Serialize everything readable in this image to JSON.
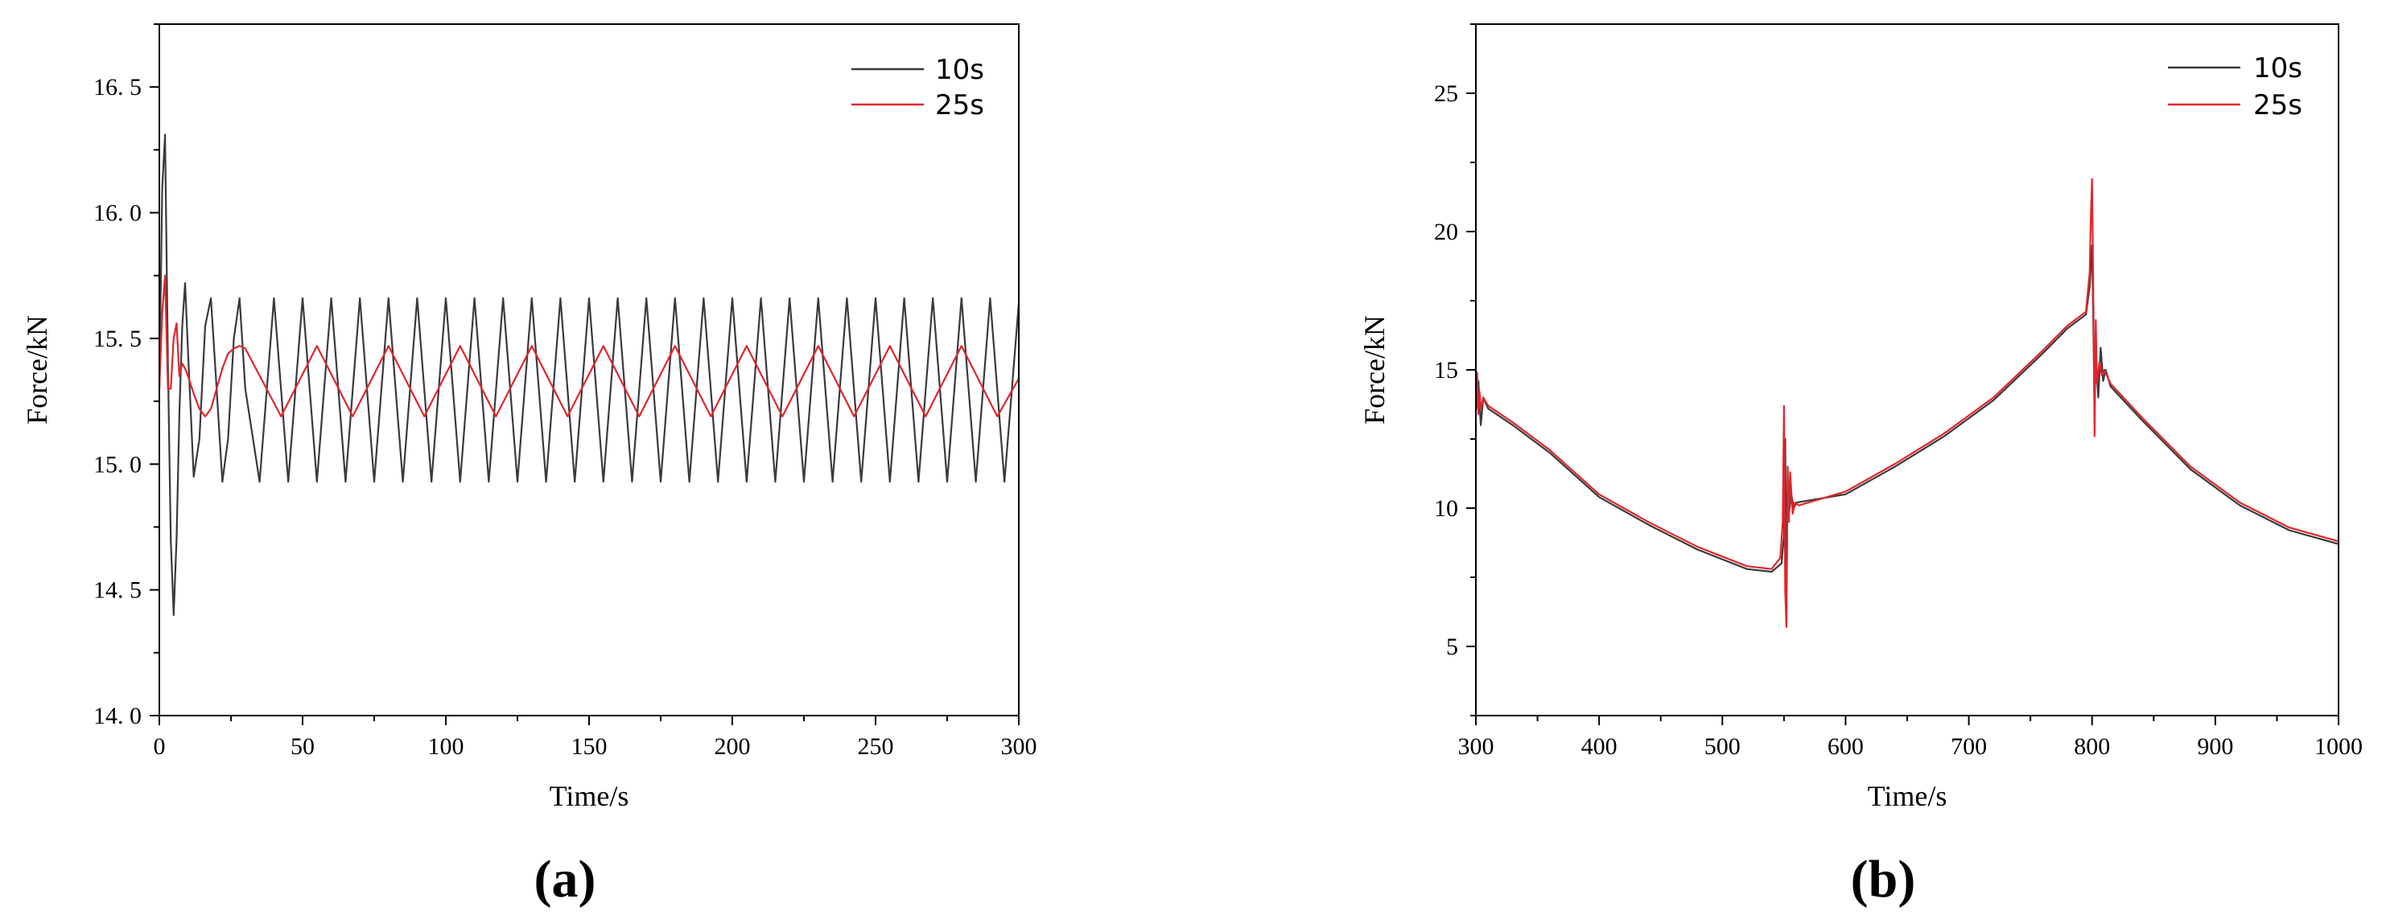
{
  "figure": {
    "panel_labels": [
      "(a)",
      "(b)"
    ],
    "colors": {
      "axis": "#000000",
      "series_10s": "#3a3a3a",
      "series_25s": "#e0262a"
    }
  },
  "chart_data": [
    {
      "type": "line",
      "panel": "(a)",
      "xlabel": "Time/s",
      "ylabel": "Force/kN",
      "xlim": [
        0,
        300
      ],
      "ylim": [
        14.0,
        16.75
      ],
      "xticks": [
        0,
        50,
        100,
        150,
        200,
        250,
        300
      ],
      "xtick_labels": [
        "0",
        "50",
        "100",
        "150",
        "200",
        "250",
        "300"
      ],
      "yticks": [
        14.0,
        14.5,
        15.0,
        15.5,
        16.0,
        16.5
      ],
      "ytick_labels": [
        "14. 0",
        "14. 5",
        "15. 0",
        "15. 5",
        "16. 0",
        "16. 5"
      ],
      "grid": false,
      "legend_position": "top-right",
      "series": [
        {
          "name": "10s",
          "color": "#3a3a3a",
          "x": [
            0,
            1,
            2,
            3,
            4,
            5,
            6,
            7,
            8,
            9,
            10,
            12,
            14,
            16,
            18,
            20,
            22,
            24,
            26,
            28,
            30,
            35,
            40,
            45,
            50,
            55,
            60,
            65,
            70,
            75,
            80,
            85,
            90,
            95,
            100,
            105,
            110,
            115,
            120,
            125,
            130,
            135,
            140,
            145,
            150,
            155,
            160,
            165,
            170,
            175,
            180,
            185,
            190,
            195,
            200,
            205,
            210,
            215,
            220,
            225,
            230,
            235,
            240,
            245,
            250,
            255,
            260,
            265,
            270,
            275,
            280,
            285,
            290,
            295,
            300
          ],
          "values": [
            15.3,
            16.1,
            16.31,
            15.4,
            14.7,
            14.4,
            14.7,
            15.2,
            15.55,
            15.72,
            15.45,
            14.95,
            15.1,
            15.55,
            15.66,
            15.3,
            14.93,
            15.1,
            15.5,
            15.66,
            15.3,
            14.93,
            15.66,
            14.93,
            15.66,
            14.93,
            15.66,
            14.93,
            15.66,
            14.93,
            15.66,
            14.93,
            15.66,
            14.93,
            15.66,
            14.93,
            15.66,
            14.93,
            15.66,
            14.93,
            15.66,
            14.93,
            15.66,
            14.93,
            15.66,
            14.93,
            15.66,
            14.93,
            15.66,
            14.93,
            15.66,
            14.93,
            15.66,
            14.93,
            15.66,
            14.93,
            15.66,
            14.93,
            15.66,
            14.93,
            15.66,
            14.93,
            15.66,
            14.93,
            15.66,
            14.93,
            15.66,
            14.93,
            15.66,
            14.93,
            15.66,
            14.93,
            15.66,
            14.93,
            15.64
          ]
        },
        {
          "name": "25s",
          "color": "#e0262a",
          "x": [
            0,
            1,
            2,
            3,
            4,
            5,
            6,
            7,
            8,
            9,
            10,
            12,
            14,
            16,
            18,
            20,
            22,
            24,
            26,
            28,
            30,
            42.5,
            55,
            67.5,
            80,
            92.5,
            105,
            117.5,
            130,
            142.5,
            155,
            167.5,
            180,
            192.5,
            205,
            217.5,
            230,
            242.5,
            255,
            267.5,
            280,
            292.5,
            300
          ],
          "values": [
            15.3,
            15.6,
            15.75,
            15.3,
            15.3,
            15.5,
            15.56,
            15.35,
            15.4,
            15.38,
            15.35,
            15.28,
            15.22,
            15.19,
            15.22,
            15.3,
            15.38,
            15.44,
            15.46,
            15.47,
            15.46,
            15.19,
            15.47,
            15.19,
            15.47,
            15.19,
            15.47,
            15.19,
            15.47,
            15.19,
            15.47,
            15.19,
            15.47,
            15.19,
            15.47,
            15.19,
            15.47,
            15.19,
            15.47,
            15.19,
            15.47,
            15.19,
            15.34
          ]
        }
      ]
    },
    {
      "type": "line",
      "panel": "(b)",
      "xlabel": "Time/s",
      "ylabel": "Force/kN",
      "xlim": [
        300,
        1000
      ],
      "ylim": [
        2.5,
        27.5
      ],
      "xticks": [
        300,
        400,
        500,
        600,
        700,
        800,
        900,
        1000
      ],
      "xtick_labels": [
        "300",
        "400",
        "500",
        "600",
        "700",
        "800",
        "900",
        "1000"
      ],
      "yticks": [
        5,
        10,
        15,
        20,
        25
      ],
      "ytick_labels": [
        "5",
        "10",
        "15",
        "20",
        "25"
      ],
      "grid": false,
      "legend_position": "top-right",
      "series": [
        {
          "name": "10s",
          "color": "#3a3a3a",
          "x": [
            300,
            302,
            304,
            306,
            310,
            330,
            360,
            400,
            440,
            480,
            520,
            540,
            548,
            550,
            551,
            552,
            553,
            554,
            556,
            558,
            560,
            600,
            640,
            680,
            720,
            760,
            780,
            795,
            798,
            800,
            801,
            802,
            803,
            805,
            807,
            809,
            811,
            815,
            840,
            880,
            920,
            960,
            1000
          ],
          "values": [
            13.5,
            14.6,
            13.0,
            14.0,
            13.6,
            13.0,
            12.0,
            10.4,
            9.4,
            8.5,
            7.8,
            7.7,
            8.0,
            9.0,
            12.5,
            6.5,
            11.0,
            9.8,
            10.5,
            10.0,
            10.2,
            10.5,
            11.5,
            12.6,
            13.9,
            15.6,
            16.5,
            17.0,
            18.0,
            19.5,
            16.8,
            13.5,
            15.5,
            14.0,
            15.8,
            14.6,
            15.0,
            14.4,
            13.2,
            11.4,
            10.1,
            9.2,
            8.7
          ]
        },
        {
          "name": "25s",
          "color": "#e0262a",
          "x": [
            300,
            301,
            302,
            303,
            304,
            306,
            310,
            330,
            360,
            400,
            440,
            480,
            520,
            540,
            547,
            549,
            550,
            551,
            552,
            553,
            554,
            555,
            557,
            559,
            562,
            600,
            640,
            680,
            720,
            760,
            780,
            795,
            798,
            799,
            800,
            801,
            802,
            803,
            804,
            806,
            808,
            810,
            815,
            840,
            880,
            920,
            960,
            1000
          ],
          "values": [
            13.6,
            14.9,
            13.4,
            14.2,
            13.6,
            14.0,
            13.7,
            13.1,
            12.1,
            10.5,
            9.5,
            8.6,
            7.9,
            7.8,
            8.2,
            9.5,
            13.7,
            7.0,
            5.7,
            11.5,
            9.5,
            11.3,
            9.8,
            10.2,
            10.1,
            10.6,
            11.6,
            12.7,
            14.0,
            15.7,
            16.6,
            17.1,
            18.5,
            20.5,
            21.9,
            18.0,
            12.6,
            16.8,
            14.5,
            15.3,
            14.8,
            15.0,
            14.5,
            13.3,
            11.5,
            10.2,
            9.3,
            8.8
          ]
        }
      ]
    }
  ]
}
